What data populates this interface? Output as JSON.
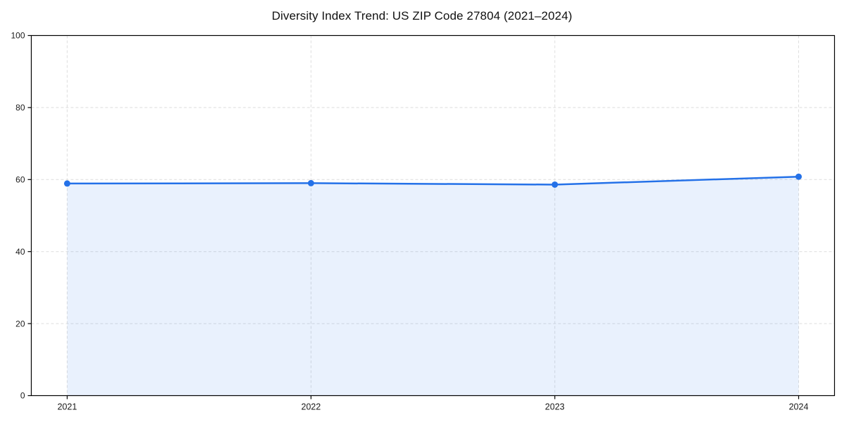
{
  "figure": {
    "background": "#ffffff"
  },
  "chart_data": {
    "type": "line",
    "title": "Diversity Index Trend: US ZIP Code 27804 (2021–2024)",
    "categories": [
      "2021",
      "2022",
      "2023",
      "2024"
    ],
    "series": [
      {
        "name": "Diversity Index",
        "values": [
          58.9,
          59.0,
          58.6,
          60.8
        ]
      }
    ],
    "xlabel": "",
    "ylabel": "",
    "ylim": [
      0,
      100
    ],
    "yticks": [
      0,
      20,
      40,
      60,
      80,
      100
    ],
    "grid": true,
    "grid_line_style": "dashed",
    "legend_position": "none",
    "area_fill": true,
    "colors": {
      "line": "#2471e8",
      "marker": "#2471e8",
      "area_fill": "rgba(36, 113, 232, 0.10)",
      "grid": "#dedede",
      "axis": "#000000",
      "tick_label": "#1a1a1a",
      "title": "#111111"
    }
  }
}
